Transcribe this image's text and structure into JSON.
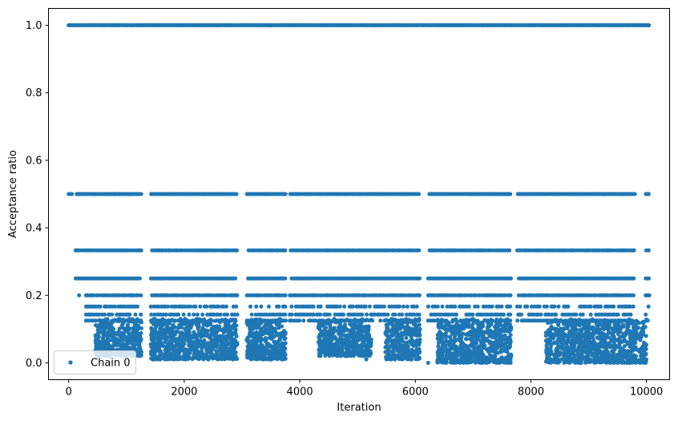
{
  "chart_data": {
    "type": "scatter",
    "xlabel": "Iteration",
    "ylabel": "Acceptance ratio",
    "xlim": [
      -350,
      10400
    ],
    "ylim": [
      -0.05,
      1.05
    ],
    "xticks": [
      0,
      2000,
      4000,
      6000,
      8000,
      10000
    ],
    "xtick_labels": [
      "0",
      "2000",
      "4000",
      "6000",
      "8000",
      "10000"
    ],
    "yticks": [
      0.0,
      0.2,
      0.4,
      0.6,
      0.8,
      1.0
    ],
    "ytick_labels": [
      "0.0",
      "0.2",
      "0.4",
      "0.6",
      "0.8",
      "1.0"
    ],
    "grid": false,
    "legend_position": "lower-left",
    "colors": {
      "series": "#1f77b4",
      "axes": "#000000",
      "legend_border": "#cccccc"
    },
    "series": [
      {
        "name": "Chain 0",
        "marker": "dot",
        "x_range": [
          0,
          10050
        ],
        "levels": [
          1.0,
          0.5,
          0.3333,
          0.25,
          0.2,
          0.1667,
          0.1429,
          0.125
        ],
        "clusters": [
          {
            "x": [
              460,
              1260
            ],
            "y": [
              0.02,
              0.13
            ]
          },
          {
            "x": [
              1420,
              2920
            ],
            "y": [
              0.01,
              0.13
            ]
          },
          {
            "x": [
              3080,
              3760
            ],
            "y": [
              0.01,
              0.13
            ]
          },
          {
            "x": [
              4320,
              5240
            ],
            "y": [
              0.02,
              0.13
            ]
          },
          {
            "x": [
              5480,
              6080
            ],
            "y": [
              0.01,
              0.13
            ]
          },
          {
            "x": [
              6380,
              7660
            ],
            "y": [
              0.0,
              0.13
            ]
          },
          {
            "x": [
              8260,
              10000
            ],
            "y": [
              0.0,
              0.13
            ]
          }
        ],
        "points": [
          {
            "x": 0,
            "y": 1.0
          },
          {
            "x": 120,
            "y": 1.0
          },
          {
            "x": 180,
            "y": 0.2
          },
          {
            "x": 150,
            "y": 0.5
          },
          {
            "x": 130,
            "y": 0.3333
          },
          {
            "x": 310,
            "y": 0.25
          },
          {
            "x": 760,
            "y": 0.12
          },
          {
            "x": 920,
            "y": 0.04
          },
          {
            "x": 1120,
            "y": 0.03
          },
          {
            "x": 1230,
            "y": 0.02
          },
          {
            "x": 1610,
            "y": 0.09
          },
          {
            "x": 2050,
            "y": 0.03
          },
          {
            "x": 2420,
            "y": 0.04
          },
          {
            "x": 2800,
            "y": 0.02
          },
          {
            "x": 3250,
            "y": 0.05
          },
          {
            "x": 3600,
            "y": 0.02
          },
          {
            "x": 4550,
            "y": 0.08
          },
          {
            "x": 4960,
            "y": 0.04
          },
          {
            "x": 5150,
            "y": 0.01
          },
          {
            "x": 5700,
            "y": 0.05
          },
          {
            "x": 6000,
            "y": 0.02
          },
          {
            "x": 6220,
            "y": 0.0
          },
          {
            "x": 6650,
            "y": 0.06
          },
          {
            "x": 7050,
            "y": 0.01
          },
          {
            "x": 7650,
            "y": 0.0
          },
          {
            "x": 7660,
            "y": 0.02
          },
          {
            "x": 8700,
            "y": 0.06
          },
          {
            "x": 9300,
            "y": 0.02
          },
          {
            "x": 9700,
            "y": 0.01
          },
          {
            "x": 9900,
            "y": 0.02
          },
          {
            "x": 9800,
            "y": 0.5
          },
          {
            "x": 10030,
            "y": 0.5
          },
          {
            "x": 10030,
            "y": 0.3333
          },
          {
            "x": 9820,
            "y": 1.0
          }
        ]
      }
    ]
  }
}
